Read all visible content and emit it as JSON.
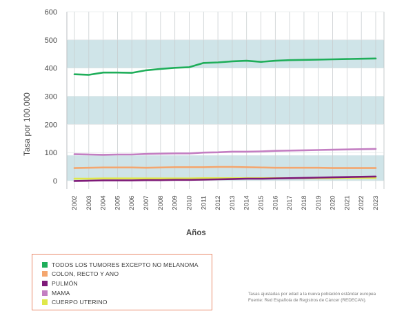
{
  "chart_data": {
    "type": "line",
    "ylabel": "Tasa por 100.000",
    "xlabel": "Años",
    "ylim": [
      0,
      600
    ],
    "yticks": [
      "0",
      "100",
      "200",
      "300",
      "400",
      "500",
      "600"
    ],
    "x": [
      "2002",
      "2003",
      "2004",
      "2005",
      "2006",
      "2007",
      "2008",
      "2009",
      "2010",
      "2011",
      "2012",
      "2013",
      "2014",
      "2015",
      "2016",
      "2017",
      "2018",
      "2019",
      "2020",
      "2021",
      "2022",
      "2023"
    ],
    "series": [
      {
        "name": "TODOS LOS TUMORES EXCEPTO NO MELANOMA",
        "color": "#1fae5a",
        "values": [
          378,
          376,
          384,
          384,
          383,
          392,
          397,
          401,
          403,
          418,
          420,
          424,
          426,
          422,
          426,
          428,
          429,
          430,
          431,
          432,
          433,
          434
        ]
      },
      {
        "name": "COLON, RECTO Y ANO",
        "color": "#f4a66e",
        "values": [
          45,
          46,
          47,
          47,
          47,
          46,
          47,
          48,
          48,
          48,
          49,
          49,
          48,
          47,
          46,
          46,
          46,
          46,
          45,
          45,
          45,
          45
        ]
      },
      {
        "name": "PULMÓN",
        "color": "#7e1a79",
        "values": [
          -1,
          0,
          1,
          1,
          1,
          2,
          2,
          3,
          3,
          4,
          5,
          6,
          7,
          7,
          8,
          9,
          10,
          11,
          12,
          13,
          14,
          15
        ]
      },
      {
        "name": "MAMA",
        "color": "#c37ec2",
        "values": [
          94,
          93,
          92,
          93,
          93,
          95,
          96,
          97,
          97,
          100,
          101,
          103,
          103,
          104,
          106,
          107,
          108,
          109,
          110,
          111,
          112,
          113
        ]
      },
      {
        "name": "CUERPO UTERINO",
        "color": "#dfe84a",
        "values": [
          7,
          7,
          8,
          8,
          8,
          8,
          8,
          8,
          8,
          9,
          9,
          9,
          9,
          9,
          9,
          9,
          9,
          9,
          9,
          10,
          10,
          10
        ]
      }
    ],
    "bands": [
      [
        400,
        500
      ],
      [
        200,
        300
      ],
      [
        0,
        90
      ]
    ],
    "band_color": "#cfe4e8",
    "grid": true,
    "legend_position": "bottom-left"
  },
  "notes": [
    "Tasas ajustadas por edad a la nueva población estándar europea",
    "Fuente: Red Española de Registros de Cáncer (REDECAN)."
  ]
}
